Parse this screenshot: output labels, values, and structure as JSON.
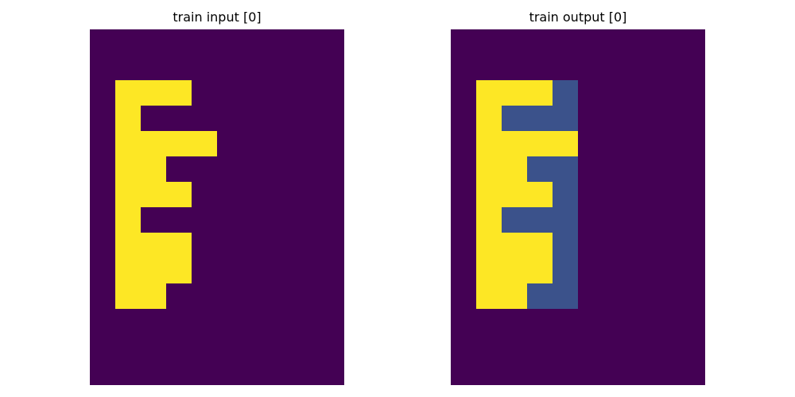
{
  "chart_data": [
    {
      "type": "heatmap",
      "title": "train input [0]",
      "xlabel": "",
      "ylabel": "",
      "grid": false,
      "axes_visible": false,
      "rows": 14,
      "cols": 10,
      "values": [
        [
          0,
          0,
          0,
          0,
          0,
          0,
          0,
          0,
          0,
          0
        ],
        [
          0,
          0,
          0,
          0,
          0,
          0,
          0,
          0,
          0,
          0
        ],
        [
          0,
          1,
          1,
          1,
          0,
          0,
          0,
          0,
          0,
          0
        ],
        [
          0,
          1,
          0,
          0,
          0,
          0,
          0,
          0,
          0,
          0
        ],
        [
          0,
          1,
          1,
          1,
          1,
          0,
          0,
          0,
          0,
          0
        ],
        [
          0,
          1,
          1,
          0,
          0,
          0,
          0,
          0,
          0,
          0
        ],
        [
          0,
          1,
          1,
          1,
          0,
          0,
          0,
          0,
          0,
          0
        ],
        [
          0,
          1,
          0,
          0,
          0,
          0,
          0,
          0,
          0,
          0
        ],
        [
          0,
          1,
          1,
          1,
          0,
          0,
          0,
          0,
          0,
          0
        ],
        [
          0,
          1,
          1,
          1,
          0,
          0,
          0,
          0,
          0,
          0
        ],
        [
          0,
          1,
          1,
          0,
          0,
          0,
          0,
          0,
          0,
          0
        ],
        [
          0,
          0,
          0,
          0,
          0,
          0,
          0,
          0,
          0,
          0
        ],
        [
          0,
          0,
          0,
          0,
          0,
          0,
          0,
          0,
          0,
          0
        ],
        [
          0,
          0,
          0,
          0,
          0,
          0,
          0,
          0,
          0,
          0
        ]
      ]
    },
    {
      "type": "heatmap",
      "title": "train output [0]",
      "xlabel": "",
      "ylabel": "",
      "grid": false,
      "axes_visible": false,
      "rows": 14,
      "cols": 10,
      "values": [
        [
          0,
          0,
          0,
          0,
          0,
          0,
          0,
          0,
          0,
          0
        ],
        [
          0,
          0,
          0,
          0,
          0,
          0,
          0,
          0,
          0,
          0
        ],
        [
          0,
          1,
          1,
          1,
          2,
          0,
          0,
          0,
          0,
          0
        ],
        [
          0,
          1,
          2,
          2,
          2,
          0,
          0,
          0,
          0,
          0
        ],
        [
          0,
          1,
          1,
          1,
          1,
          0,
          0,
          0,
          0,
          0
        ],
        [
          0,
          1,
          1,
          2,
          2,
          0,
          0,
          0,
          0,
          0
        ],
        [
          0,
          1,
          1,
          1,
          2,
          0,
          0,
          0,
          0,
          0
        ],
        [
          0,
          1,
          2,
          2,
          2,
          0,
          0,
          0,
          0,
          0
        ],
        [
          0,
          1,
          1,
          1,
          2,
          0,
          0,
          0,
          0,
          0
        ],
        [
          0,
          1,
          1,
          1,
          2,
          0,
          0,
          0,
          0,
          0
        ],
        [
          0,
          1,
          1,
          2,
          2,
          0,
          0,
          0,
          0,
          0
        ],
        [
          0,
          0,
          0,
          0,
          0,
          0,
          0,
          0,
          0,
          0
        ],
        [
          0,
          0,
          0,
          0,
          0,
          0,
          0,
          0,
          0,
          0
        ],
        [
          0,
          0,
          0,
          0,
          0,
          0,
          0,
          0,
          0,
          0
        ]
      ]
    }
  ],
  "colors": {
    "0": "#440154",
    "1": "#fde725",
    "2": "#3b528b"
  }
}
